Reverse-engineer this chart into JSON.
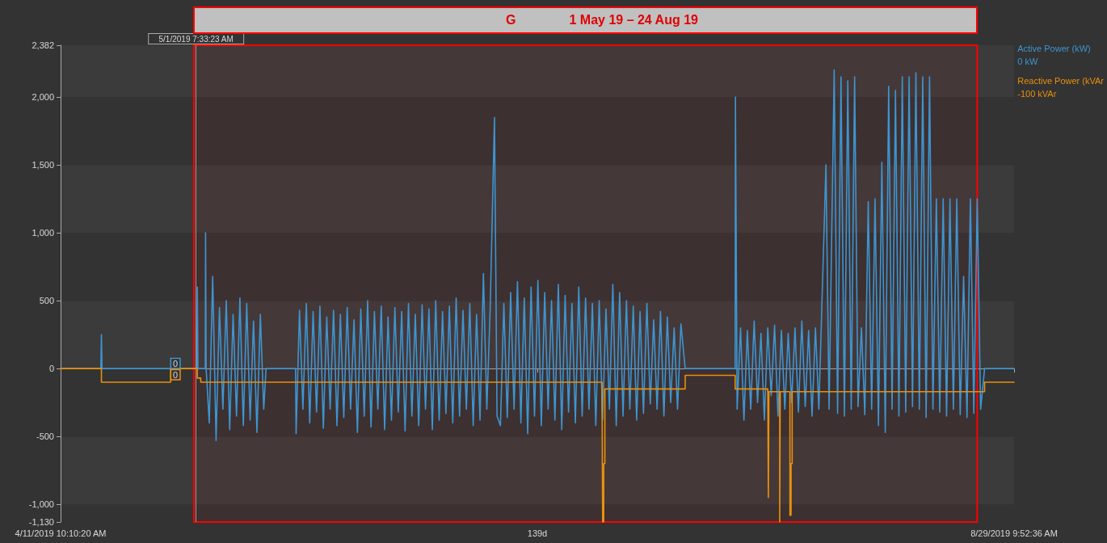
{
  "chart_data": {
    "type": "line",
    "title": "G",
    "xlim": [
      "2019-04-11T10:10",
      "2019-08-29T09:52"
    ],
    "xticks": [
      {
        "value": "2019-04-11T10:10",
        "label": "4/11/2019 10:10:20 AM"
      },
      {
        "value": "2019-06-20T10:00",
        "label": "139d"
      },
      {
        "value": "2019-08-29T09:52",
        "label": "8/29/2019 9:52:36 AM"
      }
    ],
    "ylim": [
      -1130,
      2382
    ],
    "yticks": [
      {
        "value": -1130,
        "label": "-1,130"
      },
      {
        "value": -1000,
        "label": "-1,000"
      },
      -500,
      0,
      500,
      {
        "value": 1000,
        "label": "1,000"
      },
      {
        "value": 1500,
        "label": "1,500"
      },
      {
        "value": 2000,
        "label": "2,000"
      },
      {
        "value": 2382,
        "label": "2,382"
      }
    ],
    "grid": "y",
    "legend": "top right",
    "series": [
      {
        "name": "Active Power (kW)",
        "color": "#3d95d1",
        "x": [
          "2019-04-11T10:10",
          "2019-04-17T08:00",
          "2019-04-17T10:00",
          "2019-04-17T12:00",
          "2019-05-01T10:00",
          "2019-05-01T12:00",
          "2019-05-01T14:00",
          "2019-05-02T16:00",
          "2019-05-02T17:00",
          "2019-05-02T19:00",
          "2019-05-03T06:00",
          "2019-05-03T18:00",
          "2019-05-04T06:00",
          "2019-05-04T18:00",
          "2019-05-05T06:00",
          "2019-05-05T18:00",
          "2019-05-06T06:00",
          "2019-05-06T18:00",
          "2019-05-07T06:00",
          "2019-05-07T18:00",
          "2019-05-08T06:00",
          "2019-05-08T18:00",
          "2019-05-09T06:00",
          "2019-05-09T18:00",
          "2019-05-10T06:00",
          "2019-05-10T18:00",
          "2019-05-11T06:00",
          "2019-05-11T14:00",
          "2019-05-15T22:00",
          "2019-05-16T00:00",
          "2019-05-16T12:00",
          "2019-05-17T00:00",
          "2019-05-17T12:00",
          "2019-05-18T00:00",
          "2019-05-18T12:00",
          "2019-05-19T00:00",
          "2019-05-19T12:00",
          "2019-05-20T00:00",
          "2019-05-20T12:00",
          "2019-05-21T00:00",
          "2019-05-21T12:00",
          "2019-05-22T00:00",
          "2019-05-22T12:00",
          "2019-05-23T00:00",
          "2019-05-23T12:00",
          "2019-05-24T00:00",
          "2019-05-24T12:00",
          "2019-05-25T00:00",
          "2019-05-25T12:00",
          "2019-05-26T00:00",
          "2019-05-26T12:00",
          "2019-05-27T00:00",
          "2019-05-27T12:00",
          "2019-05-28T00:00",
          "2019-05-28T12:00",
          "2019-05-29T00:00",
          "2019-05-29T12:00",
          "2019-05-30T00:00",
          "2019-05-30T12:00",
          "2019-05-31T00:00",
          "2019-05-31T12:00",
          "2019-06-01T00:00",
          "2019-06-01T12:00",
          "2019-06-02T00:00",
          "2019-06-02T12:00",
          "2019-06-03T00:00",
          "2019-06-03T12:00",
          "2019-06-04T00:00",
          "2019-06-04T12:00",
          "2019-06-05T00:00",
          "2019-06-05T12:00",
          "2019-06-06T00:00",
          "2019-06-06T12:00",
          "2019-06-07T00:00",
          "2019-06-07T12:00",
          "2019-06-08T00:00",
          "2019-06-08T12:00",
          "2019-06-09T00:00",
          "2019-06-09T12:00",
          "2019-06-10T00:00",
          "2019-06-10T12:00",
          "2019-06-11T00:00",
          "2019-06-11T12:00",
          "2019-06-12T00:00",
          "2019-06-12T12:00",
          "2019-06-13T00:00",
          "2019-06-13T12:00",
          "2019-06-14T03:00",
          "2019-06-14T12:00",
          "2019-06-15T00:00",
          "2019-06-15T12:00",
          "2019-06-16T00:00",
          "2019-06-16T12:00",
          "2019-06-17T00:00",
          "2019-06-17T12:00",
          "2019-06-18T00:00",
          "2019-06-18T12:00",
          "2019-06-19T00:00",
          "2019-06-19T12:00",
          "2019-06-20T00:00",
          "2019-06-20T12:00",
          "2019-06-21T00:00",
          "2019-06-21T12:00",
          "2019-06-22T00:00",
          "2019-06-22T12:00",
          "2019-06-23T00:00",
          "2019-06-23T12:00",
          "2019-06-24T00:00",
          "2019-06-24T12:00",
          "2019-06-25T00:00",
          "2019-06-25T12:00",
          "2019-06-26T00:00",
          "2019-06-26T12:00",
          "2019-06-27T00:00",
          "2019-06-27T12:00",
          "2019-06-28T00:00",
          "2019-06-28T12:00",
          "2019-06-29T00:00",
          "2019-06-29T12:00",
          "2019-06-30T00:00",
          "2019-06-30T12:00",
          "2019-07-01T00:00",
          "2019-07-01T12:00",
          "2019-07-02T00:00",
          "2019-07-02T12:00",
          "2019-07-03T00:00",
          "2019-07-03T12:00",
          "2019-07-04T00:00",
          "2019-07-04T12:00",
          "2019-07-05T00:00",
          "2019-07-05T12:00",
          "2019-07-06T00:00",
          "2019-07-06T12:00",
          "2019-07-07T00:00",
          "2019-07-07T12:00",
          "2019-07-08T00:00",
          "2019-07-08T12:00",
          "2019-07-09T00:00",
          "2019-07-09T12:00",
          "2019-07-10T00:00",
          "2019-07-10T12:00",
          "2019-07-11T00:00",
          "2019-07-11T12:00",
          "2019-07-12T03:00",
          "2019-07-19T11:00",
          "2019-07-19T12:00",
          "2019-07-19T18:00",
          "2019-07-20T06:00",
          "2019-07-20T18:00",
          "2019-07-21T06:00",
          "2019-07-21T18:00",
          "2019-07-22T06:00",
          "2019-07-22T18:00",
          "2019-07-23T06:00",
          "2019-07-23T18:00",
          "2019-07-24T06:00",
          "2019-07-24T18:00",
          "2019-07-25T06:00",
          "2019-07-25T18:00",
          "2019-07-26T06:00",
          "2019-07-26T18:00",
          "2019-07-27T06:00",
          "2019-07-27T18:00",
          "2019-07-28T06:00",
          "2019-07-28T18:00",
          "2019-07-29T06:00",
          "2019-07-29T18:00",
          "2019-07-30T06:00",
          "2019-07-30T18:00",
          "2019-07-31T06:00",
          "2019-07-31T18:00",
          "2019-08-01T19:00",
          "2019-08-02T06:00",
          "2019-08-03T00:00",
          "2019-08-03T12:00",
          "2019-08-04T00:00",
          "2019-08-04T12:00",
          "2019-08-05T00:00",
          "2019-08-05T12:00",
          "2019-08-06T00:00",
          "2019-08-06T12:00",
          "2019-08-07T00:00",
          "2019-08-07T12:00",
          "2019-08-08T00:00",
          "2019-08-08T12:00",
          "2019-08-09T00:00",
          "2019-08-09T12:00",
          "2019-08-10T00:00",
          "2019-08-10T12:00",
          "2019-08-11T00:00",
          "2019-08-11T12:00",
          "2019-08-12T00:00",
          "2019-08-12T12:00",
          "2019-08-13T00:00",
          "2019-08-13T12:00",
          "2019-08-14T00:00",
          "2019-08-14T12:00",
          "2019-08-15T00:00",
          "2019-08-15T12:00",
          "2019-08-16T00:00",
          "2019-08-16T12:00",
          "2019-08-17T00:00",
          "2019-08-17T12:00",
          "2019-08-18T00:00",
          "2019-08-18T12:00",
          "2019-08-19T00:00",
          "2019-08-19T12:00",
          "2019-08-20T00:00",
          "2019-08-20T12:00",
          "2019-08-21T00:00",
          "2019-08-21T12:00",
          "2019-08-22T00:00",
          "2019-08-22T12:00",
          "2019-08-23T00:00",
          "2019-08-23T12:00",
          "2019-08-24T00:00",
          "2019-08-24T12:00",
          "2019-08-25T02:00",
          "2019-08-29T09:52"
        ],
        "values": [
          0,
          0,
          250,
          0,
          0,
          600,
          0,
          0,
          1000,
          0,
          -400,
          680,
          -530,
          450,
          -300,
          500,
          -450,
          400,
          -350,
          520,
          -420,
          480,
          -380,
          350,
          -470,
          400,
          -300,
          0,
          0,
          -480,
          430,
          -300,
          480,
          -400,
          420,
          -320,
          460,
          -440,
          380,
          -300,
          430,
          -420,
          400,
          -360,
          450,
          -300,
          360,
          -470,
          440,
          -350,
          500,
          -430,
          420,
          -300,
          460,
          -450,
          380,
          -380,
          450,
          -320,
          420,
          -460,
          480,
          -350,
          400,
          -420,
          470,
          -300,
          440,
          -450,
          500,
          -380,
          420,
          -330,
          460,
          -400,
          520,
          -350,
          430,
          -300,
          480,
          -420,
          400,
          -380,
          700,
          -300,
          450,
          1850,
          -350,
          -420,
          480,
          -360,
          560,
          -300,
          640,
          -400,
          520,
          -480,
          600,
          -350,
          650,
          -420,
          560,
          -300,
          500,
          -380,
          620,
          -450,
          540,
          -320,
          480,
          -400,
          600,
          -350,
          520,
          -300,
          480,
          -420,
          500,
          -380,
          440,
          -300,
          620,
          -420,
          560,
          -350,
          500,
          -300,
          460,
          -380,
          420,
          -330,
          480,
          -260,
          360,
          -300,
          420,
          -350,
          380,
          -250,
          300,
          -300,
          330,
          0,
          0,
          2000,
          -300,
          300,
          -380,
          280,
          -300,
          350,
          -250,
          260,
          -380,
          300,
          -200,
          320,
          -350,
          280,
          -300,
          260,
          -250,
          300,
          -320,
          350,
          -280,
          280,
          -350,
          300,
          -300,
          1500,
          -300,
          2200,
          -330,
          2150,
          -350,
          2120,
          -300,
          2150,
          -280,
          300,
          -340,
          1230,
          -300,
          1250,
          -420,
          1520,
          -470,
          2080,
          -300,
          2050,
          -350,
          2150,
          -320,
          2150,
          -280,
          2180,
          -300,
          2150,
          -360,
          2150,
          -300,
          1250,
          -320,
          1250,
          -350,
          1250,
          -300,
          1250,
          -340,
          680,
          -360,
          1250,
          -330,
          1250,
          -300,
          0,
          0
        ]
      },
      {
        "name": "Reactive Power (kVAr",
        "type": "step",
        "color": "#e8900f",
        "x": [
          "2019-04-11T10:10",
          "2019-04-17T10:00",
          "2019-04-27T14:00",
          "2019-05-01T12:00",
          "2019-05-02T00:00",
          "2019-06-29T22:00",
          "2019-06-30T00:00",
          "2019-06-30T04:00",
          "2019-06-30T08:00",
          "2019-07-12T03:00",
          "2019-07-19T11:00",
          "2019-07-24T06:00",
          "2019-07-24T08:00",
          "2019-07-24T10:00",
          "2019-07-26T00:00",
          "2019-07-26T02:00",
          "2019-07-27T12:00",
          "2019-07-27T16:00",
          "2019-07-27T20:00",
          "2019-08-25T02:00",
          "2019-08-29T09:52"
        ],
        "values": [
          0,
          -100,
          0,
          -70,
          -100,
          -100,
          -1130,
          -700,
          -150,
          -50,
          -150,
          -150,
          -950,
          -170,
          -1130,
          -170,
          -1080,
          -700,
          -170,
          -100,
          -100
        ]
      }
    ],
    "ref_lines": [
      {
        "axis": "x",
        "value": "2019-05-01T07:33",
        "label": "5/1/2019 7:33:23 AM",
        "color": "#9a9a9a"
      }
    ],
    "bands": [
      {
        "axis": "x",
        "from": "2019-05-01",
        "to": "2019-08-24",
        "label": "1 May 19 – 24 Aug 19",
        "color": "#ff0000"
      }
    ],
    "annotations": [
      "0 kW",
      "-100 kVAr",
      {
        "text": "0",
        "x": "2019-04-28T21:00",
        "y": 0
      },
      {
        "text": "0",
        "x": "2019-04-28T21:00",
        "y": 0
      }
    ]
  }
}
